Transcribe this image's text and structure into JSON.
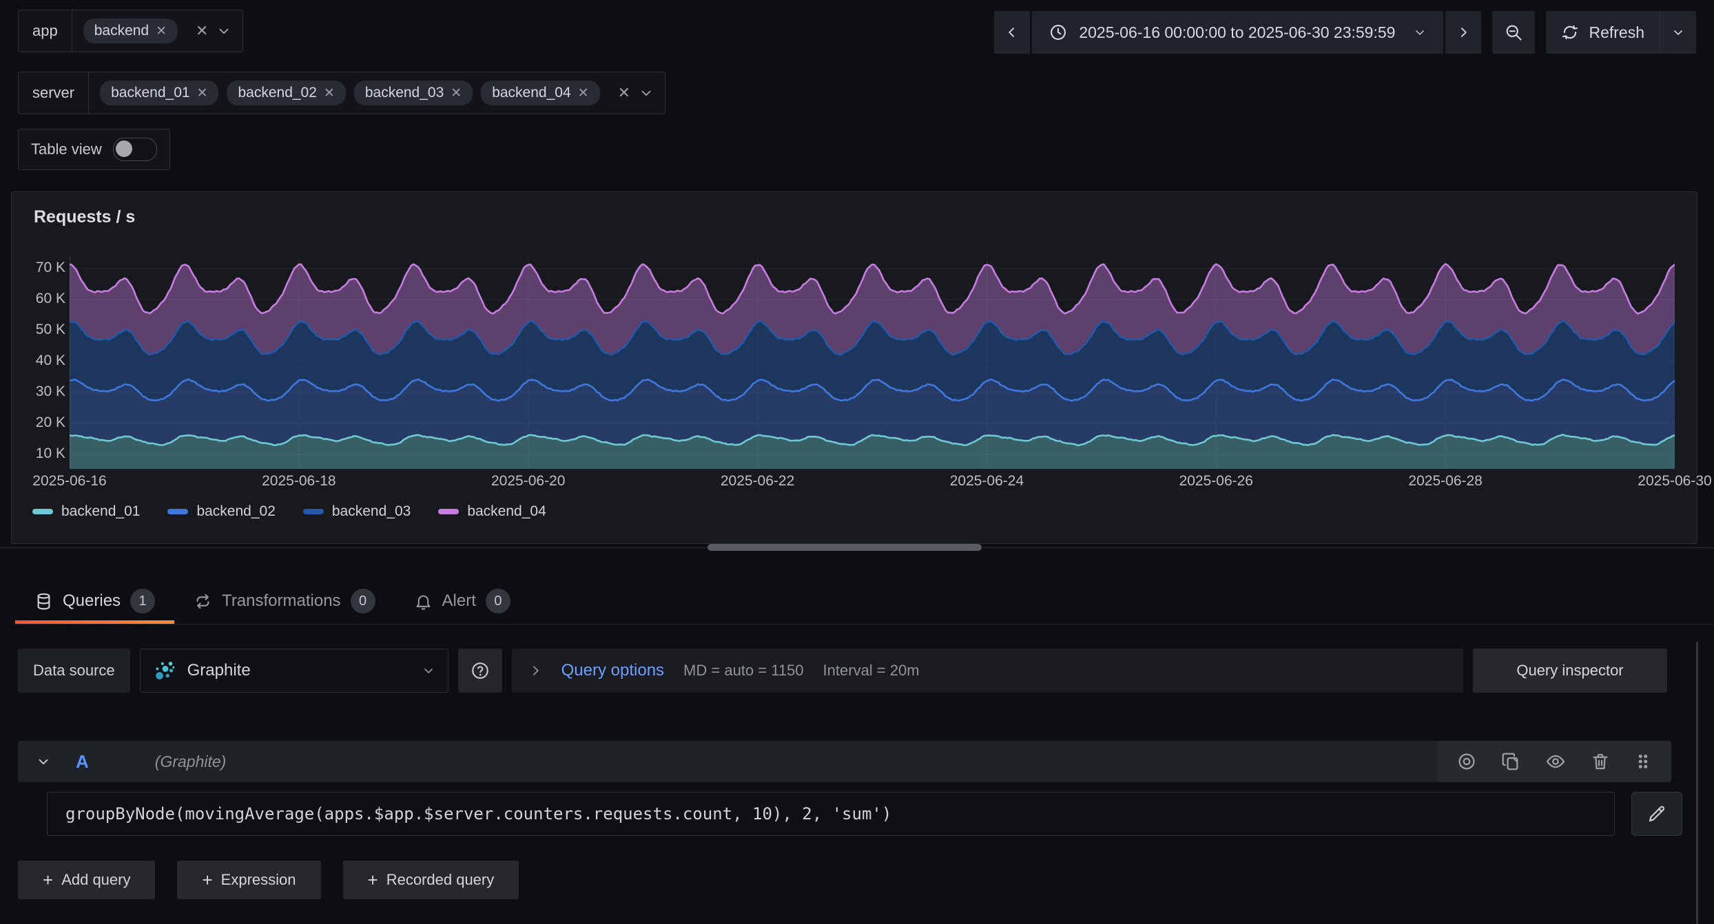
{
  "filters": {
    "app": {
      "label": "app",
      "values": [
        "backend"
      ]
    },
    "server": {
      "label": "server",
      "values": [
        "backend_01",
        "backend_02",
        "backend_03",
        "backend_04"
      ]
    }
  },
  "table_view": {
    "label": "Table view",
    "enabled": false
  },
  "time_picker": {
    "range": "2025-06-16 00:00:00 to 2025-06-30 23:59:59",
    "refresh_label": "Refresh"
  },
  "panel": {
    "title": "Requests / s"
  },
  "tabs": [
    {
      "label": "Queries",
      "count": "1",
      "active": true,
      "icon": "database-icon"
    },
    {
      "label": "Transformations",
      "count": "0",
      "active": false,
      "icon": "transform-icon"
    },
    {
      "label": "Alert",
      "count": "0",
      "active": false,
      "icon": "bell-icon"
    }
  ],
  "query_editor": {
    "datasource_label": "Data source",
    "datasource_name": "Graphite",
    "options_label": "Query options",
    "options_md": "MD = auto = 1150",
    "options_interval": "Interval = 20m",
    "inspector_label": "Query inspector",
    "row": {
      "ref_id": "A",
      "subtitle": "(Graphite)",
      "expression": "groupByNode(movingAverage(apps.$app.$server.counters.requests.count, 10), 2, 'sum')"
    },
    "add_buttons": [
      "Add query",
      "Expression",
      "Recorded query"
    ]
  },
  "chart_data": {
    "type": "area",
    "stacked": true,
    "title": "Requests / s",
    "grid": true,
    "legend_position": "bottom",
    "x_range": [
      "2025-06-16 00:00:00",
      "2025-06-30 23:59:59"
    ],
    "days": 14,
    "x_ticks": [
      "2025-06-16",
      "2025-06-18",
      "2025-06-20",
      "2025-06-22",
      "2025-06-24",
      "2025-06-26",
      "2025-06-28",
      "2025-06-30"
    ],
    "y_ticks": [
      {
        "value": 10000,
        "label": "10 K"
      },
      {
        "value": 20000,
        "label": "20 K"
      },
      {
        "value": 30000,
        "label": "30 K"
      },
      {
        "value": 40000,
        "label": "40 K"
      },
      {
        "value": 50000,
        "label": "50 K"
      },
      {
        "value": 60000,
        "label": "60 K"
      },
      {
        "value": 70000,
        "label": "70 K"
      }
    ],
    "y_axis": {
      "visible_min": 5300,
      "visible_max": 74200,
      "unit": "requests per second"
    },
    "series": [
      {
        "name": "backend_01",
        "line_color": "#6fc9d3",
        "fill_color": "rgba(111,201,211,0.40)",
        "avg": 14800,
        "min": 13000,
        "max": 16800,
        "stack_top_avg": 14800,
        "wave": {
          "base": 14800,
          "components": [
            [
              800,
              1,
              0.2
            ],
            [
              1000,
              2,
              1.2
            ],
            [
              260,
              4,
              2.1
            ]
          ],
          "noise": 180,
          "seed": 1
        }
      },
      {
        "name": "backend_02",
        "line_color": "#4077de",
        "fill_color": "rgba(64,119,222,0.38)",
        "avg": 16000,
        "min": 13800,
        "max": 18300,
        "stack_top_avg": 30800,
        "wave": {
          "base": 16000,
          "components": [
            [
              900,
              1,
              0.5
            ],
            [
              1150,
              2,
              1.5
            ],
            [
              300,
              4,
              0.3
            ]
          ],
          "noise": 200,
          "seed": 2
        }
      },
      {
        "name": "backend_03",
        "line_color": "#2359a8",
        "fill_color": "rgba(35,89,168,0.46)",
        "avg": 16800,
        "min": 14400,
        "max": 19200,
        "stack_top_avg": 47600,
        "wave": {
          "base": 16800,
          "components": [
            [
              950,
              1,
              0.8
            ],
            [
              1250,
              2,
              1.9
            ],
            [
              280,
              4,
              1.1
            ]
          ],
          "noise": 200,
          "seed": 3
        }
      },
      {
        "name": "backend_04",
        "line_color": "#c77de0",
        "fill_color": "rgba(199,125,224,0.40)",
        "avg": 15700,
        "min": 12300,
        "max": 19300,
        "stack_top_avg": 63300,
        "wave": {
          "base": 15700,
          "components": [
            [
              1300,
              1,
              1.1
            ],
            [
              1750,
              2,
              2.3
            ],
            [
              450,
              4,
              1.9
            ]
          ],
          "noise": 260,
          "seed": 4
        }
      }
    ]
  }
}
